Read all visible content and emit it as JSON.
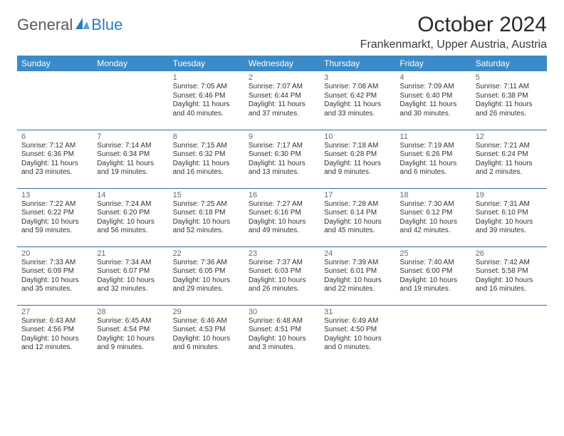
{
  "logo": {
    "general": "General",
    "blue": "Blue",
    "accent_color": "#2b7bbf"
  },
  "title": "October 2024",
  "location": "Frankenmarkt, Upper Austria, Austria",
  "header_bg": "#3b8bc9",
  "divider_color": "#2f6fa8",
  "day_headers": [
    "Sunday",
    "Monday",
    "Tuesday",
    "Wednesday",
    "Thursday",
    "Friday",
    "Saturday"
  ],
  "weeks": [
    [
      {
        "empty": true
      },
      {
        "empty": true
      },
      {
        "n": "1",
        "sunrise": "Sunrise: 7:05 AM",
        "sunset": "Sunset: 6:46 PM",
        "daylight1": "Daylight: 11 hours",
        "daylight2": "and 40 minutes."
      },
      {
        "n": "2",
        "sunrise": "Sunrise: 7:07 AM",
        "sunset": "Sunset: 6:44 PM",
        "daylight1": "Daylight: 11 hours",
        "daylight2": "and 37 minutes."
      },
      {
        "n": "3",
        "sunrise": "Sunrise: 7:08 AM",
        "sunset": "Sunset: 6:42 PM",
        "daylight1": "Daylight: 11 hours",
        "daylight2": "and 33 minutes."
      },
      {
        "n": "4",
        "sunrise": "Sunrise: 7:09 AM",
        "sunset": "Sunset: 6:40 PM",
        "daylight1": "Daylight: 11 hours",
        "daylight2": "and 30 minutes."
      },
      {
        "n": "5",
        "sunrise": "Sunrise: 7:11 AM",
        "sunset": "Sunset: 6:38 PM",
        "daylight1": "Daylight: 11 hours",
        "daylight2": "and 26 minutes."
      }
    ],
    [
      {
        "n": "6",
        "sunrise": "Sunrise: 7:12 AM",
        "sunset": "Sunset: 6:36 PM",
        "daylight1": "Daylight: 11 hours",
        "daylight2": "and 23 minutes."
      },
      {
        "n": "7",
        "sunrise": "Sunrise: 7:14 AM",
        "sunset": "Sunset: 6:34 PM",
        "daylight1": "Daylight: 11 hours",
        "daylight2": "and 19 minutes."
      },
      {
        "n": "8",
        "sunrise": "Sunrise: 7:15 AM",
        "sunset": "Sunset: 6:32 PM",
        "daylight1": "Daylight: 11 hours",
        "daylight2": "and 16 minutes."
      },
      {
        "n": "9",
        "sunrise": "Sunrise: 7:17 AM",
        "sunset": "Sunset: 6:30 PM",
        "daylight1": "Daylight: 11 hours",
        "daylight2": "and 13 minutes."
      },
      {
        "n": "10",
        "sunrise": "Sunrise: 7:18 AM",
        "sunset": "Sunset: 6:28 PM",
        "daylight1": "Daylight: 11 hours",
        "daylight2": "and 9 minutes."
      },
      {
        "n": "11",
        "sunrise": "Sunrise: 7:19 AM",
        "sunset": "Sunset: 6:26 PM",
        "daylight1": "Daylight: 11 hours",
        "daylight2": "and 6 minutes."
      },
      {
        "n": "12",
        "sunrise": "Sunrise: 7:21 AM",
        "sunset": "Sunset: 6:24 PM",
        "daylight1": "Daylight: 11 hours",
        "daylight2": "and 2 minutes."
      }
    ],
    [
      {
        "n": "13",
        "sunrise": "Sunrise: 7:22 AM",
        "sunset": "Sunset: 6:22 PM",
        "daylight1": "Daylight: 10 hours",
        "daylight2": "and 59 minutes."
      },
      {
        "n": "14",
        "sunrise": "Sunrise: 7:24 AM",
        "sunset": "Sunset: 6:20 PM",
        "daylight1": "Daylight: 10 hours",
        "daylight2": "and 56 minutes."
      },
      {
        "n": "15",
        "sunrise": "Sunrise: 7:25 AM",
        "sunset": "Sunset: 6:18 PM",
        "daylight1": "Daylight: 10 hours",
        "daylight2": "and 52 minutes."
      },
      {
        "n": "16",
        "sunrise": "Sunrise: 7:27 AM",
        "sunset": "Sunset: 6:16 PM",
        "daylight1": "Daylight: 10 hours",
        "daylight2": "and 49 minutes."
      },
      {
        "n": "17",
        "sunrise": "Sunrise: 7:28 AM",
        "sunset": "Sunset: 6:14 PM",
        "daylight1": "Daylight: 10 hours",
        "daylight2": "and 45 minutes."
      },
      {
        "n": "18",
        "sunrise": "Sunrise: 7:30 AM",
        "sunset": "Sunset: 6:12 PM",
        "daylight1": "Daylight: 10 hours",
        "daylight2": "and 42 minutes."
      },
      {
        "n": "19",
        "sunrise": "Sunrise: 7:31 AM",
        "sunset": "Sunset: 6:10 PM",
        "daylight1": "Daylight: 10 hours",
        "daylight2": "and 39 minutes."
      }
    ],
    [
      {
        "n": "20",
        "sunrise": "Sunrise: 7:33 AM",
        "sunset": "Sunset: 6:09 PM",
        "daylight1": "Daylight: 10 hours",
        "daylight2": "and 35 minutes."
      },
      {
        "n": "21",
        "sunrise": "Sunrise: 7:34 AM",
        "sunset": "Sunset: 6:07 PM",
        "daylight1": "Daylight: 10 hours",
        "daylight2": "and 32 minutes."
      },
      {
        "n": "22",
        "sunrise": "Sunrise: 7:36 AM",
        "sunset": "Sunset: 6:05 PM",
        "daylight1": "Daylight: 10 hours",
        "daylight2": "and 29 minutes."
      },
      {
        "n": "23",
        "sunrise": "Sunrise: 7:37 AM",
        "sunset": "Sunset: 6:03 PM",
        "daylight1": "Daylight: 10 hours",
        "daylight2": "and 26 minutes."
      },
      {
        "n": "24",
        "sunrise": "Sunrise: 7:39 AM",
        "sunset": "Sunset: 6:01 PM",
        "daylight1": "Daylight: 10 hours",
        "daylight2": "and 22 minutes."
      },
      {
        "n": "25",
        "sunrise": "Sunrise: 7:40 AM",
        "sunset": "Sunset: 6:00 PM",
        "daylight1": "Daylight: 10 hours",
        "daylight2": "and 19 minutes."
      },
      {
        "n": "26",
        "sunrise": "Sunrise: 7:42 AM",
        "sunset": "Sunset: 5:58 PM",
        "daylight1": "Daylight: 10 hours",
        "daylight2": "and 16 minutes."
      }
    ],
    [
      {
        "n": "27",
        "sunrise": "Sunrise: 6:43 AM",
        "sunset": "Sunset: 4:56 PM",
        "daylight1": "Daylight: 10 hours",
        "daylight2": "and 12 minutes."
      },
      {
        "n": "28",
        "sunrise": "Sunrise: 6:45 AM",
        "sunset": "Sunset: 4:54 PM",
        "daylight1": "Daylight: 10 hours",
        "daylight2": "and 9 minutes."
      },
      {
        "n": "29",
        "sunrise": "Sunrise: 6:46 AM",
        "sunset": "Sunset: 4:53 PM",
        "daylight1": "Daylight: 10 hours",
        "daylight2": "and 6 minutes."
      },
      {
        "n": "30",
        "sunrise": "Sunrise: 6:48 AM",
        "sunset": "Sunset: 4:51 PM",
        "daylight1": "Daylight: 10 hours",
        "daylight2": "and 3 minutes."
      },
      {
        "n": "31",
        "sunrise": "Sunrise: 6:49 AM",
        "sunset": "Sunset: 4:50 PM",
        "daylight1": "Daylight: 10 hours",
        "daylight2": "and 0 minutes."
      },
      {
        "empty": true
      },
      {
        "empty": true
      }
    ]
  ]
}
